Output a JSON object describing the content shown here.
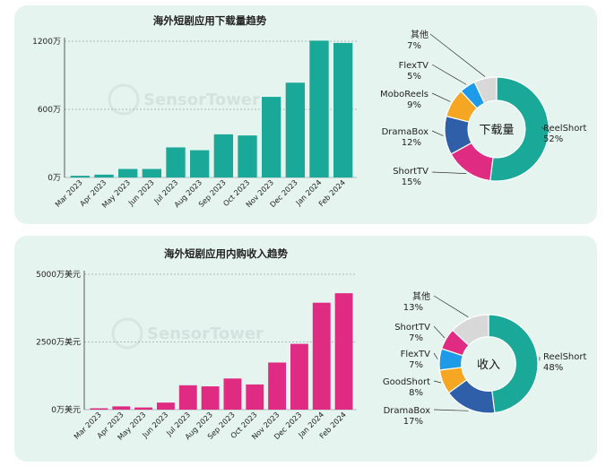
{
  "colors": {
    "bar_top": "#1aa998",
    "bar_bottom": "#e02b82",
    "panel_bg": "#e6f4f0",
    "ReelShort": "#1aa998",
    "ShortTV": "#e02b82",
    "DramaBox": "#2f5fa8",
    "MoboReels": "#f5a623",
    "FlexTV": "#1e9be8",
    "GoodShort": "#f5a623",
    "其他": "#d8d8d8"
  },
  "watermark": "SensorTower",
  "chart_data": [
    {
      "type": "bar",
      "title": "海外短剧应用下载量趋势",
      "categories": [
        "Mar 2023",
        "Apr 2023",
        "May 2023",
        "Jun 2023",
        "Jul 2023",
        "Aug 2023",
        "Sep 2023",
        "Oct 2023",
        "Nov 2023",
        "Dec 2023",
        "Jan 2024",
        "Feb 2024"
      ],
      "values": [
        15,
        25,
        75,
        75,
        265,
        240,
        380,
        370,
        710,
        835,
        1205,
        1185
      ],
      "ylim": [
        0,
        1200
      ],
      "yticks": [
        0,
        600,
        1200
      ],
      "ytick_labels": [
        "0万",
        "600万",
        "1200万"
      ],
      "grid": true
    },
    {
      "type": "pie",
      "center_label": "下载量",
      "slices": [
        {
          "name": "ReelShort",
          "value": 52,
          "label": "52%"
        },
        {
          "name": "ShortTV",
          "value": 15,
          "label": "15%"
        },
        {
          "name": "DramaBox",
          "value": 12,
          "label": "12%"
        },
        {
          "name": "MoboReels",
          "value": 9,
          "label": "9%"
        },
        {
          "name": "FlexTV",
          "value": 5,
          "label": "5%"
        },
        {
          "name": "其他",
          "value": 7,
          "label": "7%"
        }
      ]
    },
    {
      "type": "bar",
      "title": "海外短剧应用内购收入趋势",
      "categories": [
        "Mar 2023",
        "Apr 2023",
        "May 2023",
        "Jun 2023",
        "Jul 2023",
        "Aug 2023",
        "Sep 2023",
        "Oct 2023",
        "Nov 2023",
        "Dec 2023",
        "Jan 2024",
        "Feb 2024"
      ],
      "values": [
        50,
        120,
        80,
        260,
        900,
        860,
        1150,
        930,
        1740,
        2430,
        3950,
        4300
      ],
      "ylim": [
        0,
        5000
      ],
      "yticks": [
        0,
        2500,
        5000
      ],
      "ytick_labels": [
        "0万美元",
        "2500万美元",
        "5000万美元"
      ],
      "grid": true
    },
    {
      "type": "pie",
      "center_label": "收入",
      "slices": [
        {
          "name": "ReelShort",
          "value": 48,
          "label": "48%"
        },
        {
          "name": "DramaBox",
          "value": 17,
          "label": "17%"
        },
        {
          "name": "GoodShort",
          "value": 8,
          "label": "8%"
        },
        {
          "name": "FlexTV",
          "value": 7,
          "label": "7%"
        },
        {
          "name": "ShortTV",
          "value": 7,
          "label": "7%"
        },
        {
          "name": "其他",
          "value": 13,
          "label": "13%"
        }
      ]
    }
  ]
}
